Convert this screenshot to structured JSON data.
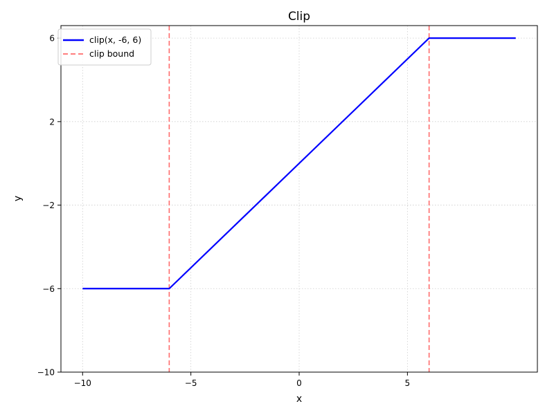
{
  "chart_data": {
    "type": "line",
    "title": "Clip",
    "xlabel": "x",
    "ylabel": "y",
    "xlim": [
      -11,
      11
    ],
    "ylim": [
      -10,
      6.6
    ],
    "xticks": [
      -10,
      -5,
      0,
      5
    ],
    "yticks": [
      -10,
      -6,
      -2,
      2,
      6
    ],
    "grid": true,
    "legend_position": "top-left",
    "series": [
      {
        "name": "clip(x, -6, 6)",
        "color": "#0000ff",
        "style": "solid",
        "x": [
          -10,
          -6,
          6,
          10
        ],
        "y": [
          -6,
          -6,
          6,
          6
        ]
      }
    ],
    "vlines": [
      {
        "name": "clip bound",
        "x": -6,
        "color": "#ff6b6b",
        "style": "dashed"
      },
      {
        "name": "clip bound",
        "x": 6,
        "color": "#ff6b6b",
        "style": "dashed"
      }
    ],
    "legend": [
      {
        "label": "clip(x, -6, 6)",
        "color": "#0000ff",
        "style": "solid"
      },
      {
        "label": "clip bound",
        "color": "#ff6b6b",
        "style": "dashed"
      }
    ]
  }
}
